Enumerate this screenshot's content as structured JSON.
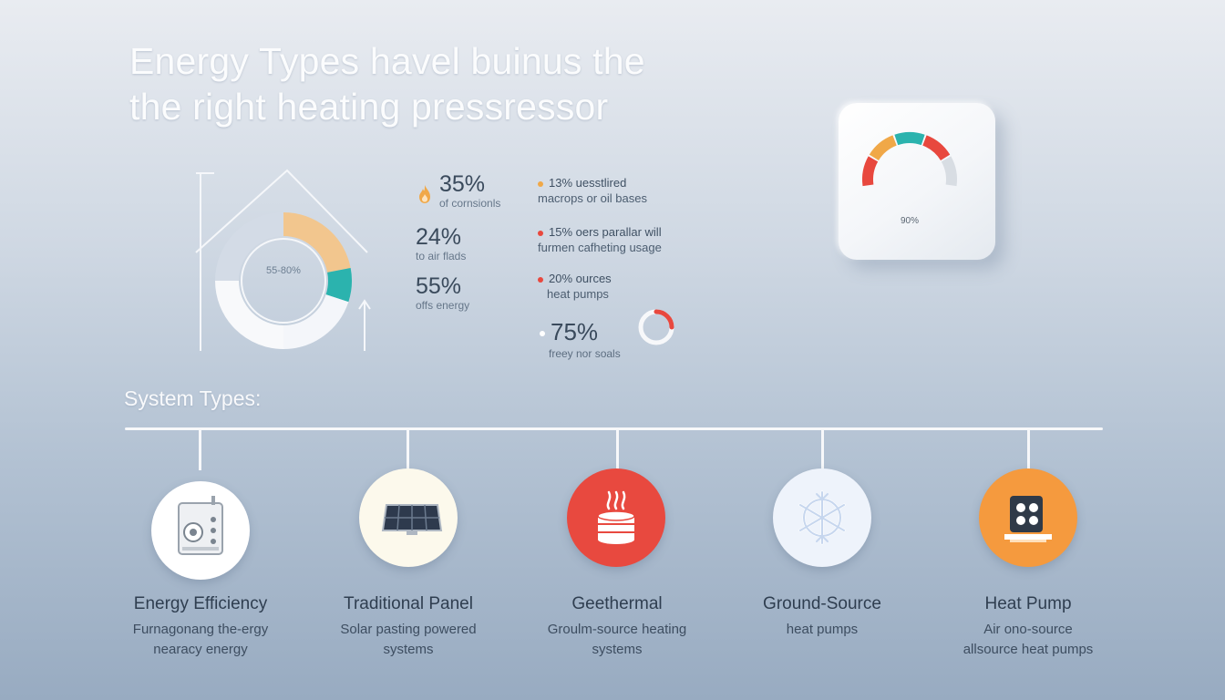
{
  "title": {
    "line1": "Energy Types havel buinus the",
    "line2": "the  right heating pressressor"
  },
  "donut": {
    "label": "55-80%",
    "segments": [
      {
        "value": 22,
        "color": "#f2c68e"
      },
      {
        "value": 8,
        "color": "#2bb3ae"
      },
      {
        "value": 20,
        "color": "#f4f6fa"
      },
      {
        "value": 25,
        "color": "#f8f9fb"
      },
      {
        "value": 25,
        "color": "#d3dbe6"
      }
    ]
  },
  "stats_left": [
    {
      "value": "35%",
      "caption": "of cornsionls",
      "icon": "flame-icon"
    },
    {
      "value": "24%",
      "caption": "to air flads"
    },
    {
      "value": "55%",
      "caption": "offs energy"
    }
  ],
  "stats_right": [
    {
      "value": "13%",
      "line1": "uesstlired",
      "line2": "macrops or oil bases",
      "color": "#f0a848"
    },
    {
      "value": "15%",
      "line1": "oers parallar will",
      "line2": "furmen cafheting usage",
      "color": "#e8483e"
    },
    {
      "value": "20%",
      "line1": "ources",
      "line2": "heat pumps",
      "color": "#e8483e"
    }
  ],
  "big_stat": {
    "value": "75%",
    "caption": "freey nor soals",
    "ring_fraction": 0.25,
    "ring_color": "#e8483e"
  },
  "thermostat": {
    "reading": "90%",
    "arc_colors": [
      "#e8483e",
      "#f0a848",
      "#2bb3ae",
      "#e8483e",
      "#d8dde3"
    ]
  },
  "system": {
    "heading": "System Types:",
    "items": [
      {
        "title": "Energy Efficiency",
        "desc1": "Furnagonang the-ergy",
        "desc2": "nearacy energy",
        "icon": "boiler-icon",
        "color": "#ffffff"
      },
      {
        "title": "Traditional Panel",
        "desc1": "Solar pasting powered",
        "desc2": "systems",
        "icon": "solar-panel-icon",
        "color": "#fcf9ec"
      },
      {
        "title": "Geethermal",
        "desc1": "Groulm-source  heating",
        "desc2": "systems",
        "icon": "geothermal-icon",
        "color": "#e8493f"
      },
      {
        "title": "Ground-Source",
        "desc1": "heat pumps",
        "desc2": "",
        "icon": "snowflake-fan-icon",
        "color": "#eef3fb"
      },
      {
        "title": "Heat Pump",
        "desc1": "Air ono-source",
        "desc2": "allsource heat pumps",
        "icon": "heat-pump-icon",
        "color": "#f59a3e"
      }
    ]
  }
}
